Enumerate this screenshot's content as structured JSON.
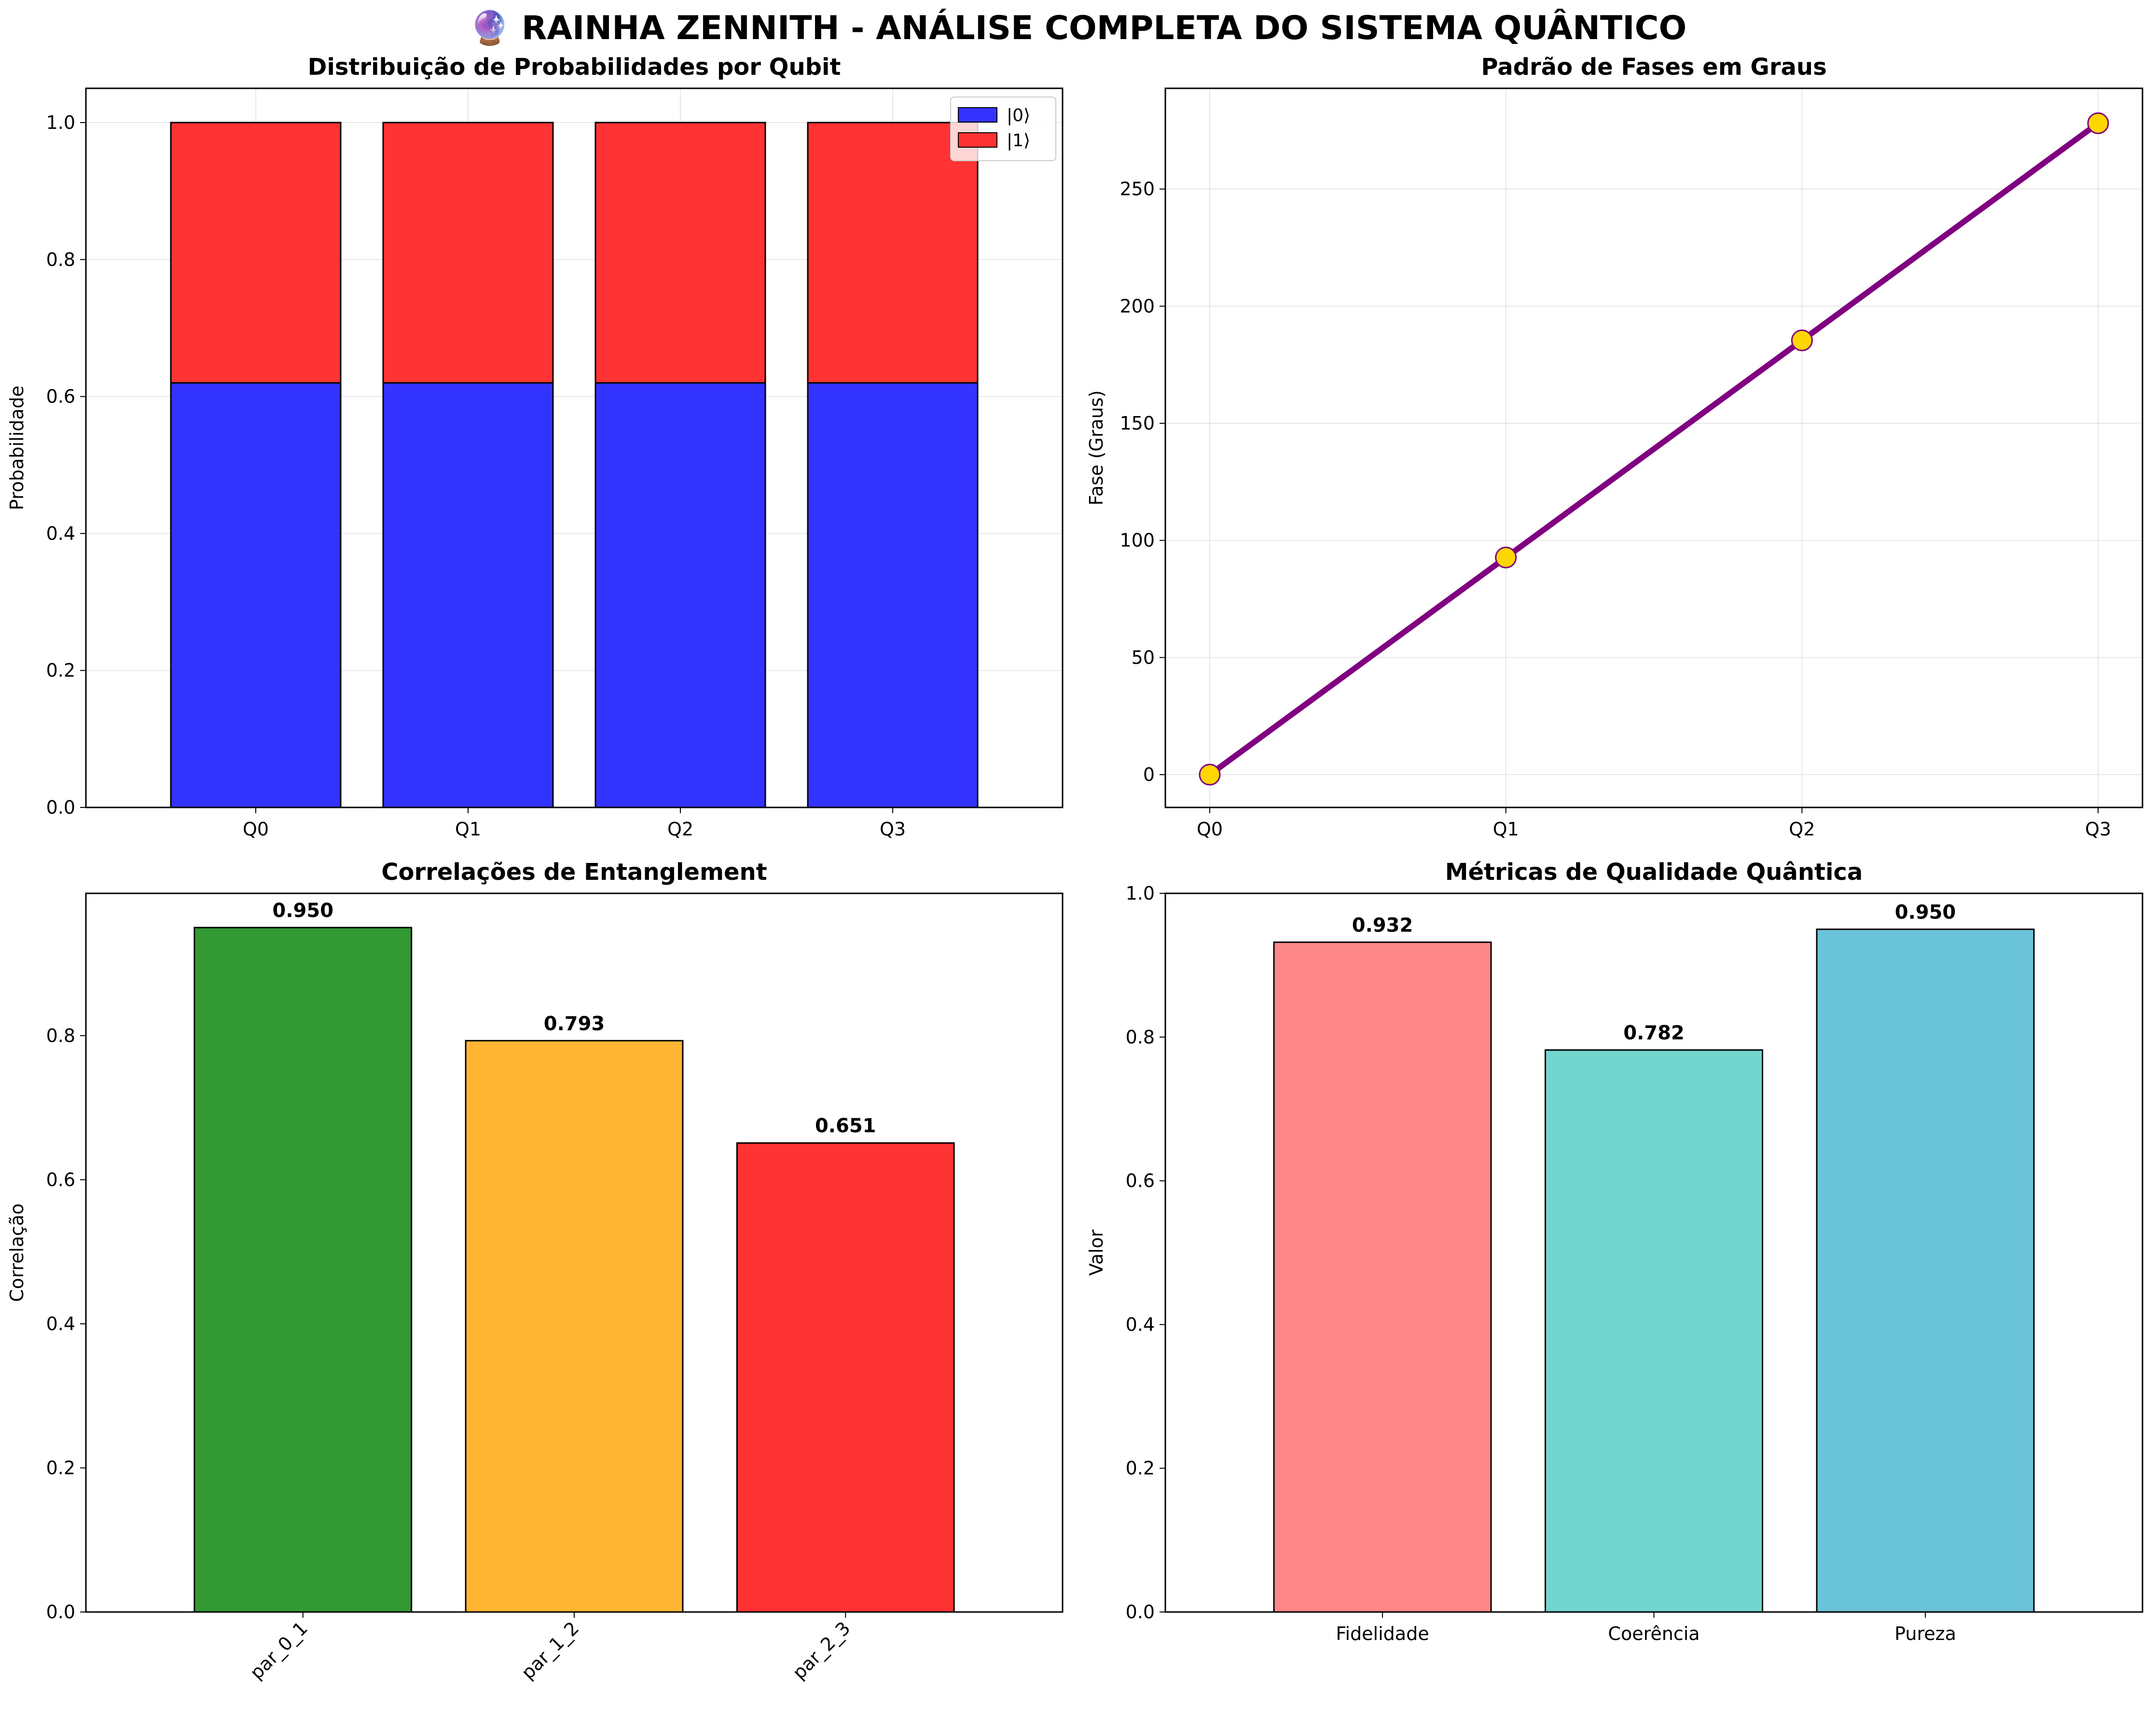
{
  "figure": {
    "title": "🔮 RAINHA ZENNITH - ANÁLISE COMPLETA DO SISTEMA QUÂNTICO"
  },
  "colors": {
    "state0": "#3333ff",
    "state1": "#ff3333",
    "phase_line": "#800080",
    "phase_marker": "#ffd700",
    "entanglement": [
      "#339933",
      "#ffb533",
      "#ff3333"
    ],
    "quality": [
      "#ff8888",
      "#72d5ce",
      "#6ac4d9"
    ]
  },
  "chart_data": [
    {
      "type": "bar",
      "stacked": true,
      "title": "Distribuição de Probabilidades por Qubit",
      "xlabel": "",
      "ylabel": "Probabilidade",
      "categories": [
        "Q0",
        "Q1",
        "Q2",
        "Q3"
      ],
      "series": [
        {
          "name": "|0⟩",
          "values": [
            0.62,
            0.62,
            0.62,
            0.62
          ]
        },
        {
          "name": "|1⟩",
          "values": [
            0.38,
            0.38,
            0.38,
            0.38
          ]
        }
      ],
      "ylim": [
        0,
        1.05
      ],
      "yticks": [
        "0.0",
        "0.2",
        "0.4",
        "0.6",
        "0.8",
        "1.0"
      ],
      "legend": "top-right",
      "grid": true
    },
    {
      "type": "line",
      "title": "Padrão de Fases em Graus",
      "xlabel": "",
      "ylabel": "Fase (Graus)",
      "categories": [
        "Q0",
        "Q1",
        "Q2",
        "Q3"
      ],
      "values": [
        0,
        92.7,
        185.4,
        278.1
      ],
      "ylim": [
        -14,
        293
      ],
      "yticks": [
        "0",
        "50",
        "100",
        "150",
        "200",
        "250"
      ],
      "grid": true
    },
    {
      "type": "bar",
      "title": "Correlações de Entanglement",
      "xlabel": "",
      "ylabel": "Correlação",
      "categories": [
        "par_0_1",
        "par_1_2",
        "par_2_3"
      ],
      "values": [
        0.95,
        0.793,
        0.651
      ],
      "value_labels": [
        "0.950",
        "0.793",
        "0.651"
      ],
      "ylim": [
        0,
        0.9975
      ],
      "yticks": [
        "0.0",
        "0.2",
        "0.4",
        "0.6",
        "0.8"
      ],
      "xtick_rotation": 45,
      "grid": false
    },
    {
      "type": "bar",
      "title": "Métricas de Qualidade Quântica",
      "xlabel": "",
      "ylabel": "Valor",
      "categories": [
        "Fidelidade",
        "Coerência",
        "Pureza"
      ],
      "values": [
        0.932,
        0.782,
        0.95
      ],
      "value_labels": [
        "0.932",
        "0.782",
        "0.950"
      ],
      "ylim": [
        0,
        1.0
      ],
      "yticks": [
        "0.0",
        "0.2",
        "0.4",
        "0.6",
        "0.8",
        "1.0"
      ],
      "grid": false
    }
  ]
}
